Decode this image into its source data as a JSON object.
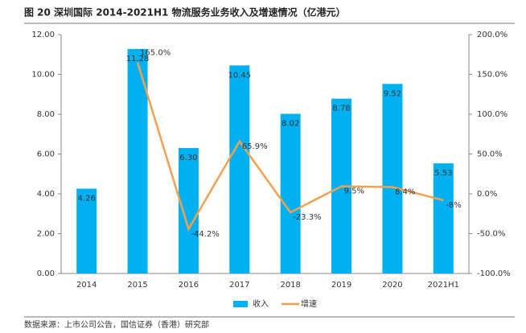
{
  "chart_data": {
    "type": "bar-line",
    "title": "图 20  深圳国际 2014-2021H1 物流服务业务收入及增速情况（亿港元）",
    "source": "数据来源：上市公司公告，国信证券（香港）研究部",
    "categories": [
      "2014",
      "2015",
      "2016",
      "2017",
      "2018",
      "2019",
      "2020",
      "2021H1"
    ],
    "series": [
      {
        "name": "收入",
        "type": "bar",
        "color": "#00b0f0",
        "values": [
          4.26,
          11.28,
          6.3,
          10.45,
          8.02,
          8.78,
          9.52,
          5.53
        ],
        "value_labels": [
          "4.26",
          "11.28",
          "6.30",
          "10.45",
          "8.02",
          "8.78",
          "9.52",
          "5.53"
        ]
      },
      {
        "name": "增速",
        "type": "line",
        "axis": "y2",
        "color": "#f5a04e",
        "values": [
          null,
          165.0,
          -44.2,
          65.9,
          -23.3,
          9.5,
          8.4,
          -8
        ],
        "value_labels": [
          null,
          "165.0%",
          "-44.2%",
          "65.9%",
          "-23.3%",
          "9.5%",
          "8.4%",
          "-8%"
        ]
      }
    ],
    "ylim": [
      0,
      12
    ],
    "yticks": [
      {
        "value": 0,
        "label": "0.00"
      },
      {
        "value": 2,
        "label": "2.00"
      },
      {
        "value": 4,
        "label": "4.00"
      },
      {
        "value": 6,
        "label": "6.00"
      },
      {
        "value": 8,
        "label": "8.00"
      },
      {
        "value": 10,
        "label": "10.00"
      },
      {
        "value": 12,
        "label": "12.00"
      }
    ],
    "y2lim": [
      -100,
      200
    ],
    "y2ticks": [
      {
        "value": -100,
        "label": "-100.0%"
      },
      {
        "value": -50,
        "label": "-50.0%"
      },
      {
        "value": 0,
        "label": "0.0%"
      },
      {
        "value": 50,
        "label": "50.0%"
      },
      {
        "value": 100,
        "label": "100.0%"
      },
      {
        "value": 150,
        "label": "150.0%"
      },
      {
        "value": 200,
        "label": "200.0%"
      }
    ]
  }
}
